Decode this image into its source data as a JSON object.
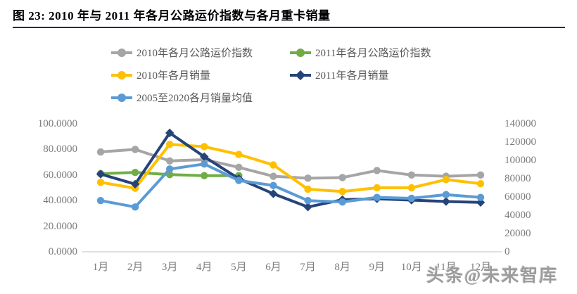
{
  "header": {
    "title": "图 23: 2010 年与 2011 年各月公路运价指数与各月重卡销量"
  },
  "watermark": "头条@未来智库",
  "colors": {
    "title_rule": "#1b2f55",
    "axis_text": "#7b7b7b",
    "legend_text": "#595959",
    "axis_line": "#d6d6d6",
    "series_gray": "#a5a5a5",
    "series_green": "#70ad47",
    "series_yellow": "#ffc000",
    "series_navy": "#264478",
    "series_lightblue": "#5b9bd5"
  },
  "chart_data": {
    "type": "line",
    "title": "2010 年与 2011 年各月公路运价指数与各月重卡销量",
    "grid": false,
    "legend_position": "top",
    "categories": [
      "1月",
      "2月",
      "3月",
      "4月",
      "5月",
      "6月",
      "7月",
      "8月",
      "9月",
      "10月",
      "11月",
      "12月"
    ],
    "left_axis": {
      "min": 0,
      "max": 100,
      "ticks": [
        {
          "label": "100.0000",
          "value": 100
        },
        {
          "label": "80.0000",
          "value": 80
        },
        {
          "label": "60.0000",
          "value": 60
        },
        {
          "label": "40.0000",
          "value": 40
        },
        {
          "label": "20.0000",
          "value": 20
        },
        {
          "label": "0.0000",
          "value": 0
        }
      ]
    },
    "right_axis": {
      "min": 0,
      "max": 140000,
      "ticks": [
        {
          "label": "140000",
          "value": 140000
        },
        {
          "label": "120000",
          "value": 120000
        },
        {
          "label": "100000",
          "value": 100000
        },
        {
          "label": "80000",
          "value": 80000
        },
        {
          "label": "60000",
          "value": 60000
        },
        {
          "label": "40000",
          "value": 40000
        },
        {
          "label": "20000",
          "value": 20000
        },
        {
          "label": "0",
          "value": 0
        }
      ]
    },
    "series": [
      {
        "name": "2010年各月公路运价指数",
        "axis": "left",
        "color": "#a5a5a5",
        "marker": "circle",
        "values": [
          78,
          80,
          71,
          72,
          66,
          59,
          57.5,
          58,
          63.5,
          60,
          59,
          60
        ]
      },
      {
        "name": "2011年各月公路运价指数",
        "axis": "left",
        "color": "#70ad47",
        "marker": "circle",
        "values": [
          61,
          62,
          60.3,
          59.5,
          59.5
        ]
      },
      {
        "name": "2010年各月销量",
        "axis": "right",
        "color": "#ffc000",
        "marker": "circle",
        "values": [
          76000,
          69500,
          117500,
          115000,
          106500,
          95000,
          68500,
          66000,
          70000,
          70000,
          79000,
          74500
        ]
      },
      {
        "name": "2011年各月销量",
        "axis": "right",
        "color": "#264478",
        "marker": "diamond",
        "values": [
          85000,
          74000,
          130000,
          104000,
          80000,
          63500,
          49000,
          57000,
          58000,
          56500,
          55000,
          54000
        ]
      },
      {
        "name": "2005至2020各月销量均值",
        "axis": "right",
        "color": "#5b9bd5",
        "marker": "circle",
        "values": [
          56000,
          49000,
          90500,
          96000,
          78000,
          72500,
          56000,
          54500,
          59500,
          58500,
          62500,
          59500
        ]
      }
    ]
  }
}
